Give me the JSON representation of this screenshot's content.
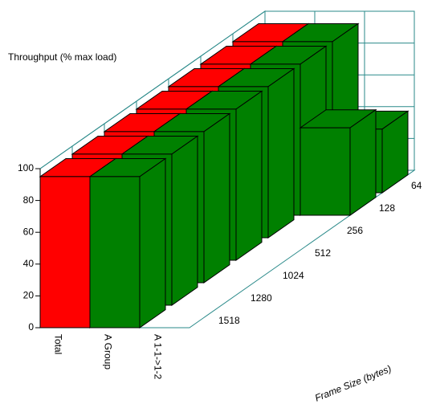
{
  "chart_data": {
    "type": "bar3d",
    "title": "Throughput (% max load)",
    "depth_label": "Frame Size (bytes)",
    "categories": [
      "Total",
      "A Group",
      "A 1-1->1-2"
    ],
    "colors": [
      "#ff0000",
      "#008000",
      "#008000"
    ],
    "series": [
      {
        "name": "1518",
        "values": [
          95,
          95,
          0
        ]
      },
      {
        "name": "1280",
        "values": [
          95,
          95,
          0
        ]
      },
      {
        "name": "1024",
        "values": [
          95,
          95,
          0
        ]
      },
      {
        "name": "512",
        "values": [
          95,
          95,
          0
        ]
      },
      {
        "name": "256",
        "values": [
          95,
          95,
          0
        ]
      },
      {
        "name": "128",
        "values": [
          95,
          95,
          55
        ]
      },
      {
        "name": "64",
        "values": [
          95,
          95,
          40
        ]
      }
    ],
    "ylim": [
      0,
      100
    ],
    "yticks": [
      0,
      20,
      40,
      60,
      80,
      100
    ],
    "grid": true
  }
}
